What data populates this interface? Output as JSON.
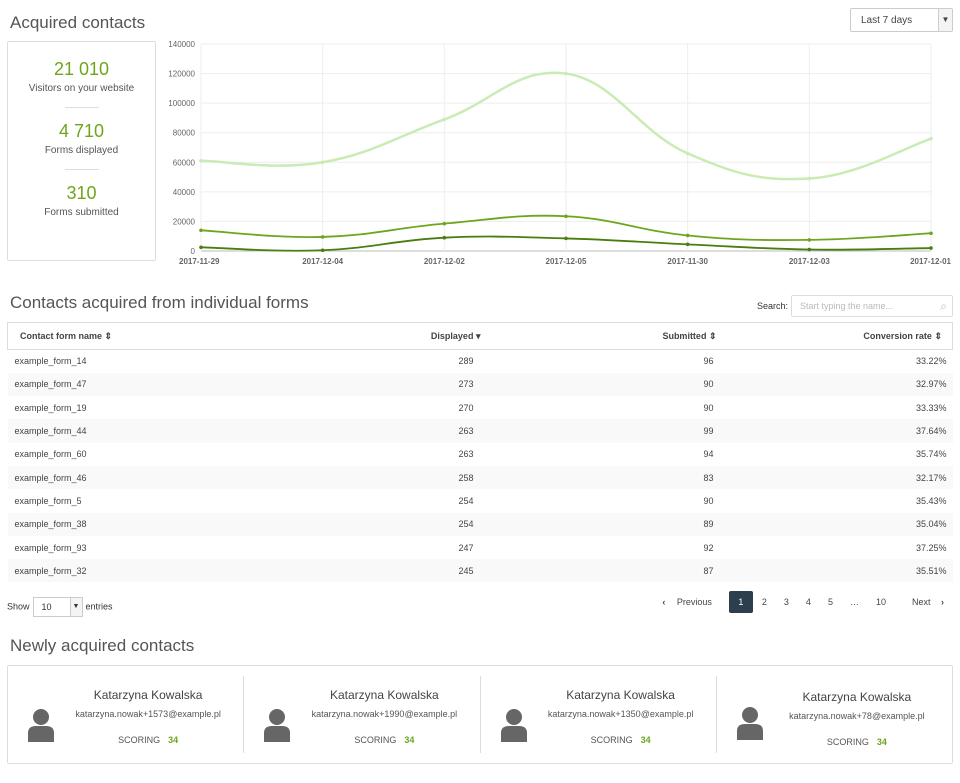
{
  "header": {
    "title": "Acquired contacts",
    "period": "Last 7 days"
  },
  "stats": [
    {
      "value": "21 010",
      "label": "Visitors on your website"
    },
    {
      "value": "4 710",
      "label": "Forms displayed"
    },
    {
      "value": "310",
      "label": "Forms submitted"
    }
  ],
  "chart_data": {
    "type": "line",
    "x": [
      "2017-11-29",
      "2017-12-04",
      "2017-12-02",
      "2017-12-05",
      "2017-11-30",
      "2017-12-03",
      "2017-12-01"
    ],
    "yticks": [
      "0",
      "20000",
      "40000",
      "60000",
      "80000",
      "100000",
      "120000",
      "140000"
    ],
    "ylim": [
      0,
      140000
    ],
    "grid": true,
    "series": [
      {
        "color": "#c9ecb4",
        "values": [
          61000,
          60000,
          89000,
          120000,
          66000,
          49000,
          76000
        ]
      },
      {
        "color": "#6ea51c",
        "values": [
          14000,
          9500,
          18500,
          23500,
          10500,
          7500,
          12000
        ]
      },
      {
        "color": "#4a7d0e",
        "values": [
          2500,
          500,
          9000,
          8500,
          4500,
          1000,
          2000
        ]
      }
    ]
  },
  "forms": {
    "title": "Contacts acquired from individual forms",
    "search_label": "Search:",
    "search_placeholder": "Start typing the name...",
    "columns": [
      "Contact form name",
      "Displayed",
      "Submitted",
      "Conversion rate"
    ],
    "rows": [
      [
        "example_form_14",
        "289",
        "96",
        "33.22%"
      ],
      [
        "example_form_47",
        "273",
        "90",
        "32.97%"
      ],
      [
        "example_form_19",
        "270",
        "90",
        "33.33%"
      ],
      [
        "example_form_44",
        "263",
        "99",
        "37.64%"
      ],
      [
        "example_form_60",
        "263",
        "94",
        "35.74%"
      ],
      [
        "example_form_46",
        "258",
        "83",
        "32.17%"
      ],
      [
        "example_form_5",
        "254",
        "90",
        "35.43%"
      ],
      [
        "example_form_38",
        "254",
        "89",
        "35.04%"
      ],
      [
        "example_form_93",
        "247",
        "92",
        "37.25%"
      ],
      [
        "example_form_32",
        "245",
        "87",
        "35.51%"
      ]
    ],
    "show": "Show",
    "entries_value": "10",
    "entries": "entries",
    "pagination": {
      "previous": "Previous",
      "pages": [
        "1",
        "2",
        "3",
        "4",
        "5",
        "…",
        "10"
      ],
      "next": "Next"
    }
  },
  "contacts": {
    "title": "Newly acquired contacts",
    "scoring_label": "SCORING",
    "items": [
      {
        "name": "Katarzyna Kowalska",
        "email": "katarzyna.nowak+1573@example.pl",
        "score": "34"
      },
      {
        "name": "Katarzyna Kowalska",
        "email": "katarzyna.nowak+1990@example.pl",
        "score": "34"
      },
      {
        "name": "Katarzyna Kowalska",
        "email": "katarzyna.nowak+1350@example.pl",
        "score": "34"
      },
      {
        "name": "Katarzyna Kowalska",
        "email": "katarzyna.nowak+78@example.pl",
        "score": "34"
      }
    ]
  }
}
